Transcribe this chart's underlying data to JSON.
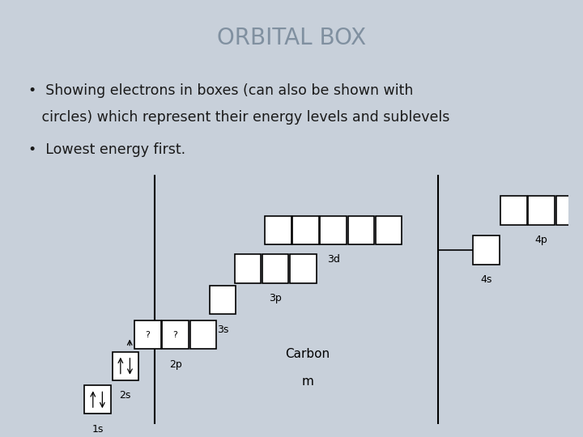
{
  "title": "ORBITAL BOX",
  "title_color": "#8090a0",
  "bg_color": "#c8d0da",
  "diagram_bg": "#ffffff",
  "bullet1_line1": "•  Showing electrons in boxes (can also be shown with",
  "bullet1_line2": "   circles) which represent their energy levels and sublevels",
  "bullet2": "•  Lowest energy first.",
  "font_size_title": 20,
  "font_size_body": 12.5,
  "font_size_label": 9,
  "font_size_carbon": 11
}
